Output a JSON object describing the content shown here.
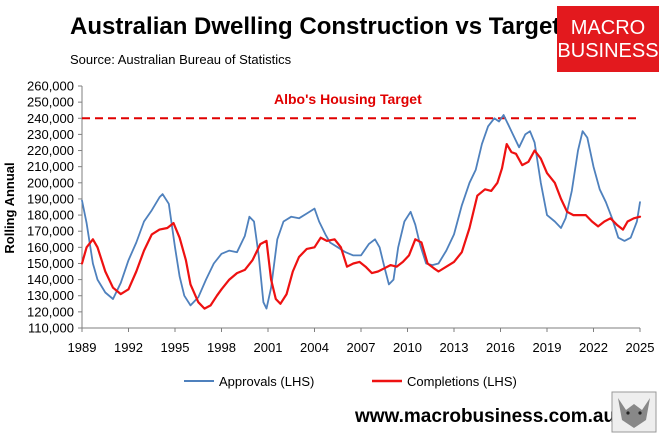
{
  "header": {
    "title": "Australian Dwelling Construction vs Target",
    "subtitle": "Source: Australian Bureau of Statistics"
  },
  "logo": {
    "line1": "MACRO",
    "line2": "BUSINESS",
    "color": "#e3191e"
  },
  "footer": {
    "url": "www.macrobusiness.com.au"
  },
  "chart_data": {
    "type": "line",
    "ylabel": "Rolling Annual",
    "xlabel": "",
    "xlim": [
      1989,
      2025
    ],
    "ylim": [
      110000,
      260000
    ],
    "x_ticks": [
      1989,
      1992,
      1995,
      1998,
      2001,
      2004,
      2007,
      2010,
      2013,
      2016,
      2019,
      2022,
      2025
    ],
    "x_tick_labels": [
      "1989",
      "1992",
      "1995",
      "1998",
      "2001",
      "2004",
      "2007",
      "2010",
      "2013",
      "2016",
      "2019",
      "2022",
      "2025"
    ],
    "y_ticks": [
      110000,
      120000,
      130000,
      140000,
      150000,
      160000,
      170000,
      180000,
      190000,
      200000,
      210000,
      220000,
      230000,
      240000,
      250000,
      260000
    ],
    "y_tick_labels": [
      "110,000",
      "120,000",
      "130,000",
      "140,000",
      "150,000",
      "160,000",
      "170,000",
      "180,000",
      "190,000",
      "200,000",
      "210,000",
      "220,000",
      "230,000",
      "240,000",
      "250,000",
      "260,000"
    ],
    "grid": false,
    "legend_position": "bottom",
    "target": {
      "label": "Albo's Housing Target",
      "value": 240000,
      "color": "#e00000",
      "x_range": [
        1989,
        2025
      ]
    },
    "series": [
      {
        "name": "Approvals (LHS)",
        "color": "#4f81bd",
        "points": [
          [
            1989.0,
            189000
          ],
          [
            1989.3,
            175000
          ],
          [
            1989.7,
            150000
          ],
          [
            1990.0,
            140000
          ],
          [
            1990.5,
            132000
          ],
          [
            1991.0,
            128000
          ],
          [
            1991.5,
            138000
          ],
          [
            1992.0,
            152000
          ],
          [
            1992.5,
            163000
          ],
          [
            1993.0,
            176000
          ],
          [
            1993.5,
            183000
          ],
          [
            1994.0,
            191000
          ],
          [
            1994.2,
            193000
          ],
          [
            1994.6,
            187000
          ],
          [
            1995.0,
            160000
          ],
          [
            1995.3,
            142000
          ],
          [
            1995.6,
            130000
          ],
          [
            1996.0,
            124000
          ],
          [
            1996.5,
            129000
          ],
          [
            1997.0,
            140000
          ],
          [
            1997.5,
            150000
          ],
          [
            1998.0,
            156000
          ],
          [
            1998.5,
            158000
          ],
          [
            1999.0,
            157000
          ],
          [
            1999.5,
            167000
          ],
          [
            1999.8,
            179000
          ],
          [
            2000.1,
            176000
          ],
          [
            2000.4,
            155000
          ],
          [
            2000.7,
            126000
          ],
          [
            2000.9,
            122000
          ],
          [
            2001.2,
            135000
          ],
          [
            2001.6,
            165000
          ],
          [
            2002.0,
            176000
          ],
          [
            2002.5,
            179000
          ],
          [
            2003.0,
            178000
          ],
          [
            2003.5,
            181000
          ],
          [
            2004.0,
            184000
          ],
          [
            2004.3,
            176000
          ],
          [
            2004.7,
            168000
          ],
          [
            2005.0,
            163000
          ],
          [
            2005.5,
            160000
          ],
          [
            2006.0,
            157000
          ],
          [
            2006.5,
            155000
          ],
          [
            2007.0,
            155000
          ],
          [
            2007.5,
            162000
          ],
          [
            2007.9,
            165000
          ],
          [
            2008.2,
            160000
          ],
          [
            2008.5,
            148000
          ],
          [
            2008.8,
            137000
          ],
          [
            2009.1,
            140000
          ],
          [
            2009.4,
            160000
          ],
          [
            2009.8,
            176000
          ],
          [
            2010.2,
            182000
          ],
          [
            2010.5,
            174000
          ],
          [
            2010.8,
            162000
          ],
          [
            2011.2,
            150000
          ],
          [
            2011.6,
            149000
          ],
          [
            2012.0,
            150000
          ],
          [
            2012.5,
            158000
          ],
          [
            2013.0,
            168000
          ],
          [
            2013.5,
            186000
          ],
          [
            2014.0,
            200000
          ],
          [
            2014.4,
            208000
          ],
          [
            2014.8,
            224000
          ],
          [
            2015.2,
            235000
          ],
          [
            2015.6,
            240000
          ],
          [
            2015.9,
            238000
          ],
          [
            2016.2,
            242000
          ],
          [
            2016.5,
            236000
          ],
          [
            2016.8,
            230000
          ],
          [
            2017.2,
            222000
          ],
          [
            2017.6,
            230000
          ],
          [
            2017.9,
            232000
          ],
          [
            2018.2,
            225000
          ],
          [
            2018.6,
            200000
          ],
          [
            2019.0,
            180000
          ],
          [
            2019.5,
            176000
          ],
          [
            2019.9,
            172000
          ],
          [
            2020.2,
            178000
          ],
          [
            2020.6,
            195000
          ],
          [
            2021.0,
            220000
          ],
          [
            2021.3,
            232000
          ],
          [
            2021.6,
            228000
          ],
          [
            2022.0,
            210000
          ],
          [
            2022.4,
            196000
          ],
          [
            2022.8,
            188000
          ],
          [
            2023.2,
            178000
          ],
          [
            2023.6,
            166000
          ],
          [
            2024.0,
            164000
          ],
          [
            2024.4,
            166000
          ],
          [
            2024.8,
            176000
          ],
          [
            2025.0,
            188000
          ]
        ]
      },
      {
        "name": "Completions (LHS)",
        "color": "#ee1111",
        "points": [
          [
            1989.0,
            150000
          ],
          [
            1989.3,
            160000
          ],
          [
            1989.7,
            165000
          ],
          [
            1990.0,
            160000
          ],
          [
            1990.5,
            145000
          ],
          [
            1991.0,
            135000
          ],
          [
            1991.5,
            131000
          ],
          [
            1992.0,
            134000
          ],
          [
            1992.5,
            145000
          ],
          [
            1993.0,
            158000
          ],
          [
            1993.5,
            168000
          ],
          [
            1994.0,
            171000
          ],
          [
            1994.5,
            172000
          ],
          [
            1994.9,
            175000
          ],
          [
            1995.3,
            166000
          ],
          [
            1995.7,
            152000
          ],
          [
            1996.0,
            137000
          ],
          [
            1996.5,
            126000
          ],
          [
            1996.9,
            122000
          ],
          [
            1997.3,
            124000
          ],
          [
            1997.7,
            130000
          ],
          [
            1998.0,
            134000
          ],
          [
            1998.5,
            140000
          ],
          [
            1999.0,
            144000
          ],
          [
            1999.5,
            146000
          ],
          [
            2000.0,
            152000
          ],
          [
            2000.5,
            162000
          ],
          [
            2000.9,
            164000
          ],
          [
            2001.2,
            140000
          ],
          [
            2001.5,
            128000
          ],
          [
            2001.8,
            125000
          ],
          [
            2002.2,
            131000
          ],
          [
            2002.6,
            145000
          ],
          [
            2003.0,
            154000
          ],
          [
            2003.5,
            159000
          ],
          [
            2004.0,
            160000
          ],
          [
            2004.4,
            166000
          ],
          [
            2004.8,
            164000
          ],
          [
            2005.3,
            165000
          ],
          [
            2005.7,
            160000
          ],
          [
            2006.1,
            148000
          ],
          [
            2006.5,
            150000
          ],
          [
            2006.9,
            151000
          ],
          [
            2007.3,
            148000
          ],
          [
            2007.7,
            144000
          ],
          [
            2008.1,
            145000
          ],
          [
            2008.5,
            147000
          ],
          [
            2008.9,
            149000
          ],
          [
            2009.3,
            148000
          ],
          [
            2009.7,
            151000
          ],
          [
            2010.1,
            155000
          ],
          [
            2010.5,
            165000
          ],
          [
            2010.9,
            163000
          ],
          [
            2011.3,
            150000
          ],
          [
            2011.7,
            147000
          ],
          [
            2012.0,
            145000
          ],
          [
            2012.5,
            148000
          ],
          [
            2013.0,
            151000
          ],
          [
            2013.5,
            157000
          ],
          [
            2014.0,
            172000
          ],
          [
            2014.5,
            192000
          ],
          [
            2015.0,
            196000
          ],
          [
            2015.4,
            195000
          ],
          [
            2015.8,
            200000
          ],
          [
            2016.1,
            209000
          ],
          [
            2016.4,
            224000
          ],
          [
            2016.7,
            219000
          ],
          [
            2017.0,
            218000
          ],
          [
            2017.4,
            211000
          ],
          [
            2017.8,
            213000
          ],
          [
            2018.2,
            220000
          ],
          [
            2018.6,
            215000
          ],
          [
            2019.0,
            206000
          ],
          [
            2019.5,
            200000
          ],
          [
            2019.9,
            190000
          ],
          [
            2020.3,
            182000
          ],
          [
            2020.7,
            180000
          ],
          [
            2021.1,
            180000
          ],
          [
            2021.5,
            180000
          ],
          [
            2021.9,
            176000
          ],
          [
            2022.3,
            173000
          ],
          [
            2022.7,
            176000
          ],
          [
            2023.1,
            178000
          ],
          [
            2023.5,
            174000
          ],
          [
            2023.9,
            171000
          ],
          [
            2024.2,
            176000
          ],
          [
            2024.6,
            178000
          ],
          [
            2025.0,
            179000
          ]
        ]
      }
    ]
  }
}
